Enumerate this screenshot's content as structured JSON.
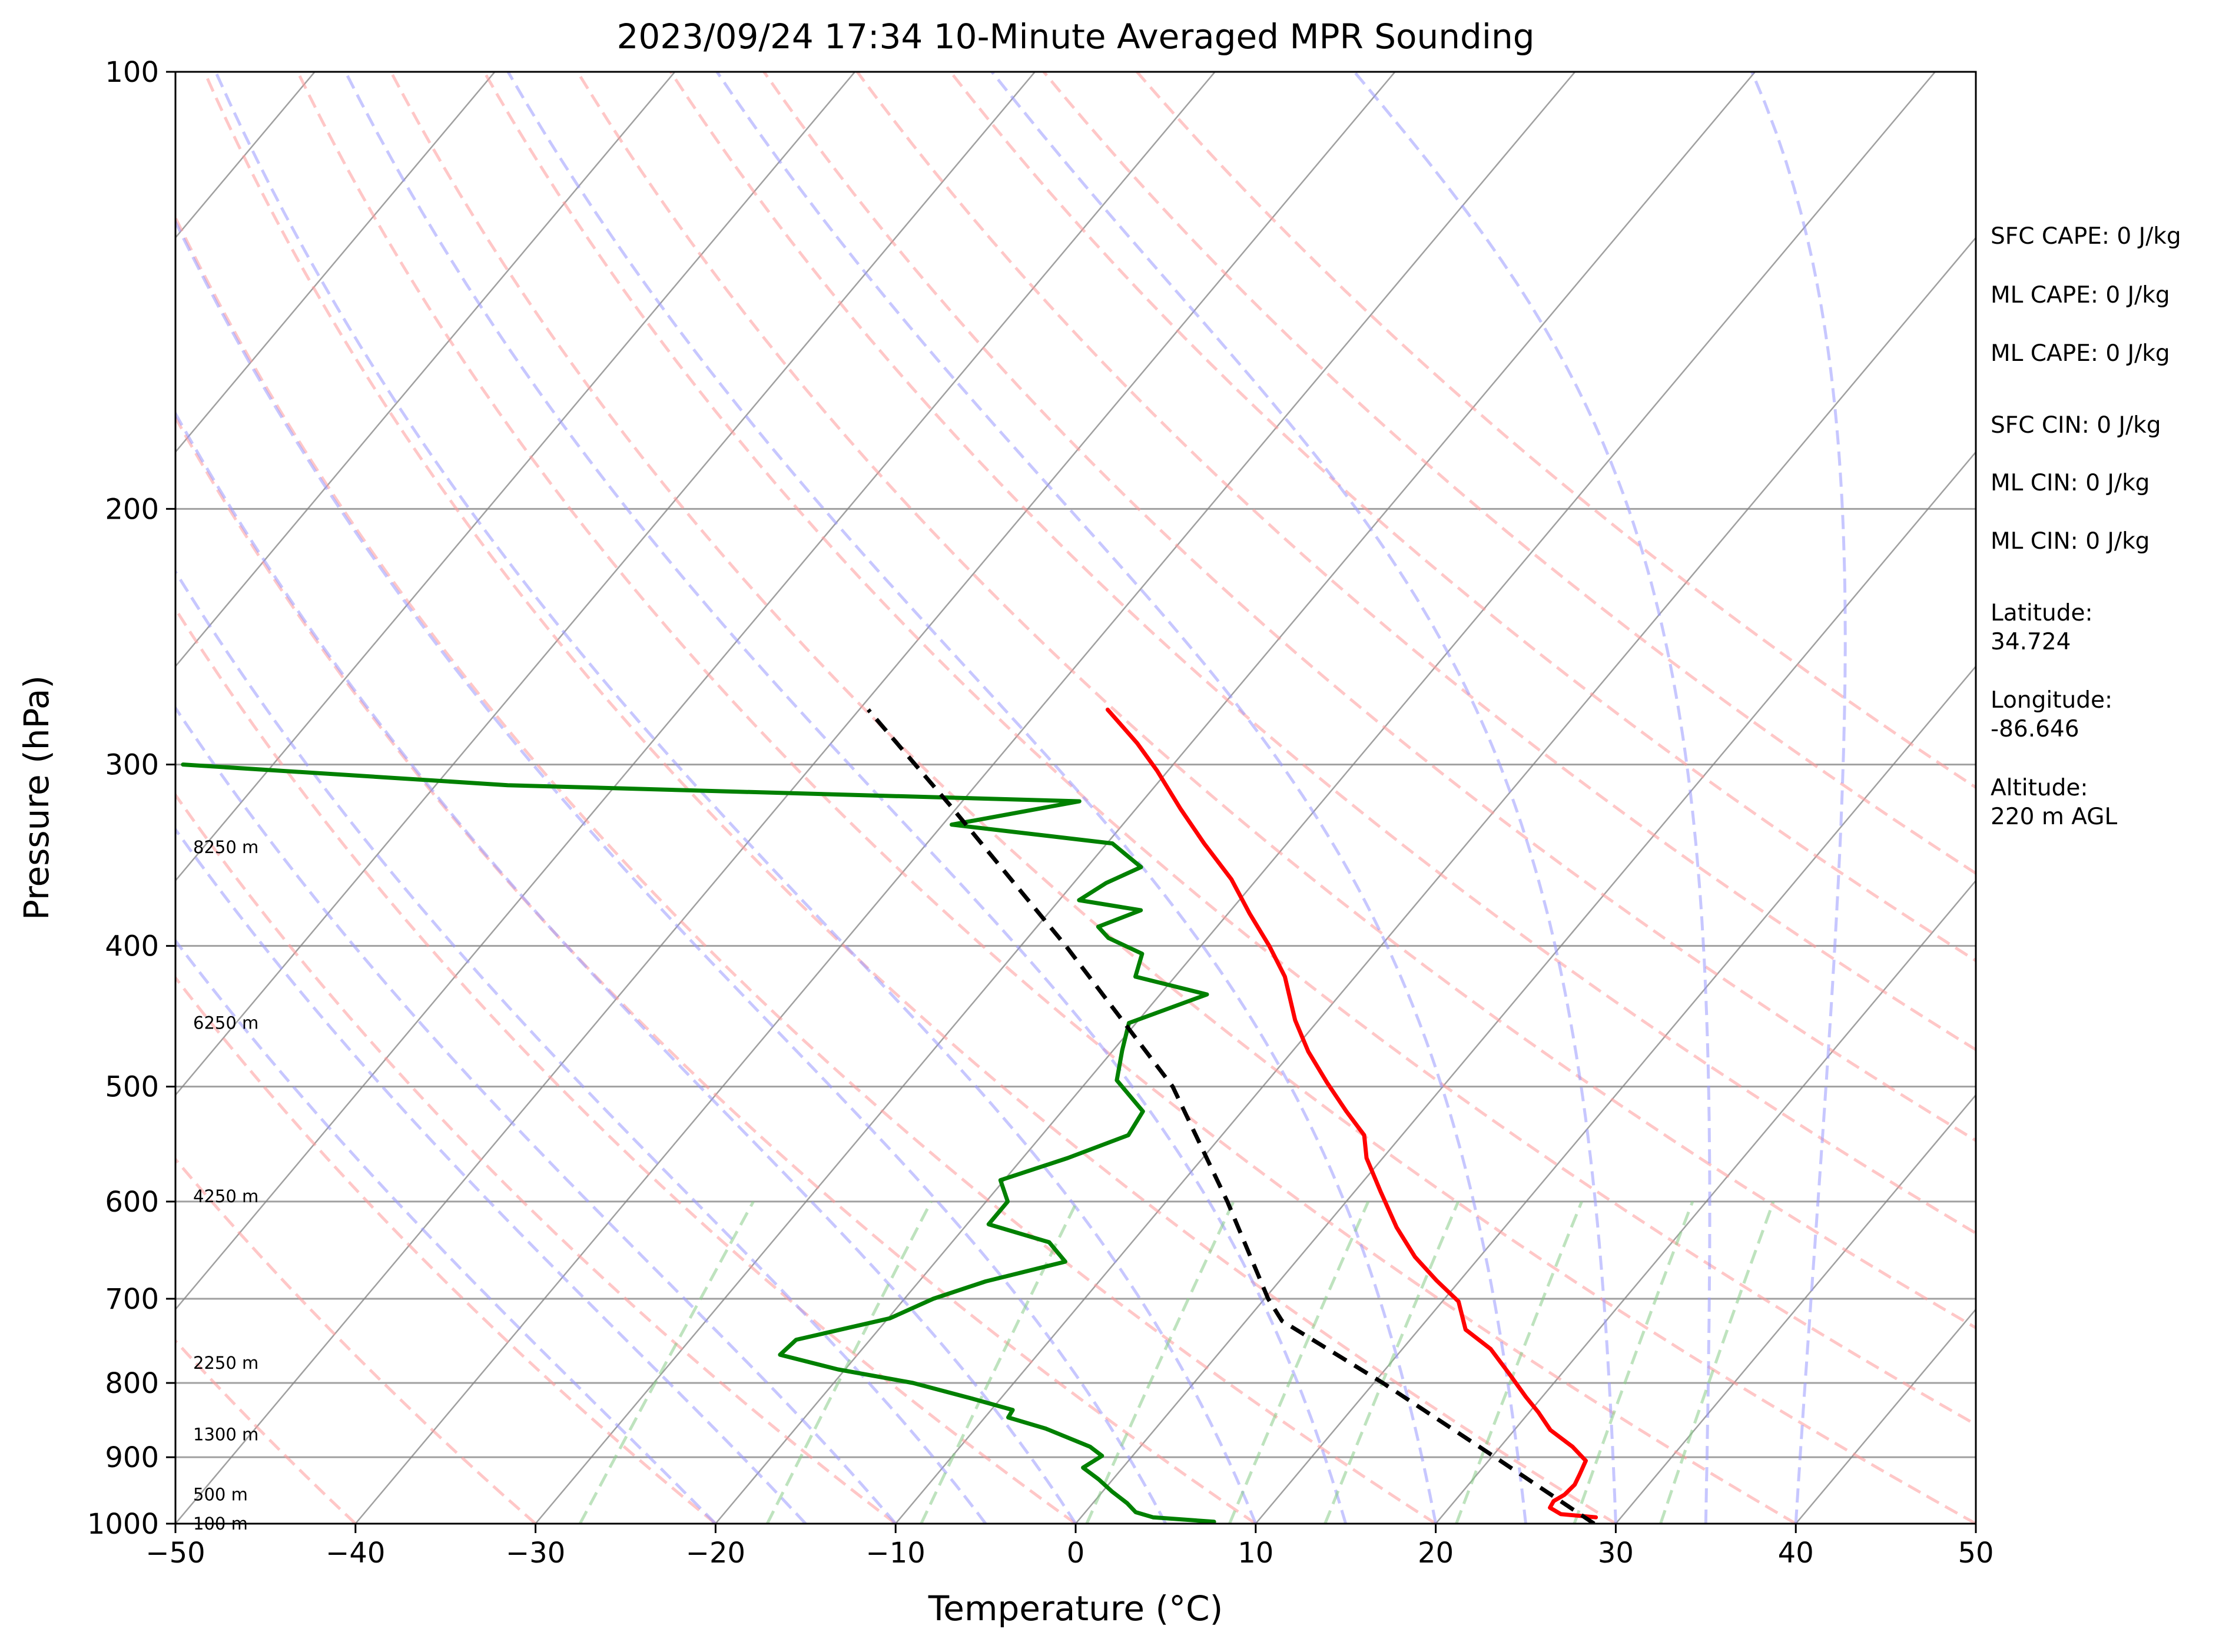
{
  "chart_data": {
    "type": "line",
    "title": "2023/09/24 17:34 10-Minute Averaged MPR Sounding",
    "xlabel": "Temperature (°C)",
    "ylabel": "Pressure (hPa)",
    "xlim": [
      -50,
      50
    ],
    "ylim": [
      1000,
      100
    ],
    "y_scale": "log",
    "skew": "skew-T log-P",
    "x_ticks": [
      "−50",
      "−40",
      "−30",
      "−20",
      "−10",
      "0",
      "10",
      "20",
      "30",
      "40",
      "50"
    ],
    "y_ticks": [
      "100",
      "200",
      "300",
      "400",
      "500",
      "600",
      "700",
      "800",
      "900",
      "1000"
    ],
    "grid": true,
    "series": [
      {
        "role": "temperature",
        "color": "#ff0000",
        "points": [
          {
            "p": 990,
            "t": 28.6
          },
          {
            "p": 985,
            "t": 26.5
          },
          {
            "p": 975,
            "t": 25.6
          },
          {
            "p": 965,
            "t": 25.5
          },
          {
            "p": 955,
            "t": 25.8
          },
          {
            "p": 940,
            "t": 25.9
          },
          {
            "p": 925,
            "t": 25.7
          },
          {
            "p": 905,
            "t": 25.4
          },
          {
            "p": 885,
            "t": 24.0
          },
          {
            "p": 862,
            "t": 22.0
          },
          {
            "p": 838,
            "t": 20.5
          },
          {
            "p": 818,
            "t": 19.1
          },
          {
            "p": 790,
            "t": 17.2
          },
          {
            "p": 758,
            "t": 14.9
          },
          {
            "p": 735,
            "t": 12.6
          },
          {
            "p": 703,
            "t": 10.9
          },
          {
            "p": 680,
            "t": 8.7
          },
          {
            "p": 655,
            "t": 6.4
          },
          {
            "p": 625,
            "t": 4.0
          },
          {
            "p": 590,
            "t": 1.4
          },
          {
            "p": 560,
            "t": -0.9
          },
          {
            "p": 540,
            "t": -2.1
          },
          {
            "p": 520,
            "t": -4.2
          },
          {
            "p": 497,
            "t": -6.6
          },
          {
            "p": 473,
            "t": -9.1
          },
          {
            "p": 450,
            "t": -11.3
          },
          {
            "p": 420,
            "t": -13.9
          },
          {
            "p": 400,
            "t": -16.2
          },
          {
            "p": 380,
            "t": -18.8
          },
          {
            "p": 360,
            "t": -21.4
          },
          {
            "p": 340,
            "t": -24.6
          },
          {
            "p": 322,
            "t": -27.5
          },
          {
            "p": 303,
            "t": -30.6
          },
          {
            "p": 290,
            "t": -33.0
          },
          {
            "p": 275,
            "t": -36.2
          }
        ]
      },
      {
        "role": "dewpoint",
        "color": "#008000",
        "points": [
          {
            "p": 997,
            "t": 7.6
          },
          {
            "p": 990,
            "t": 4.0
          },
          {
            "p": 982,
            "t": 2.8
          },
          {
            "p": 968,
            "t": 1.9
          },
          {
            "p": 950,
            "t": 0.5
          },
          {
            "p": 932,
            "t": -0.8
          },
          {
            "p": 915,
            "t": -2.2
          },
          {
            "p": 898,
            "t": -1.7
          },
          {
            "p": 885,
            "t": -2.8
          },
          {
            "p": 860,
            "t": -6.1
          },
          {
            "p": 845,
            "t": -8.7
          },
          {
            "p": 835,
            "t": -8.8
          },
          {
            "p": 820,
            "t": -11.6
          },
          {
            "p": 800,
            "t": -15.6
          },
          {
            "p": 783,
            "t": -20.4
          },
          {
            "p": 765,
            "t": -24.3
          },
          {
            "p": 747,
            "t": -24.1
          },
          {
            "p": 722,
            "t": -19.9
          },
          {
            "p": 700,
            "t": -18.4
          },
          {
            "p": 681,
            "t": -16.3
          },
          {
            "p": 660,
            "t": -12.8
          },
          {
            "p": 640,
            "t": -14.6
          },
          {
            "p": 622,
            "t": -18.8
          },
          {
            "p": 600,
            "t": -18.8
          },
          {
            "p": 580,
            "t": -20.2
          },
          {
            "p": 560,
            "t": -17.5
          },
          {
            "p": 540,
            "t": -15.2
          },
          {
            "p": 520,
            "t": -15.5
          },
          {
            "p": 495,
            "t": -18.4
          },
          {
            "p": 472,
            "t": -19.5
          },
          {
            "p": 452,
            "t": -20.4
          },
          {
            "p": 432,
            "t": -17.4
          },
          {
            "p": 420,
            "t": -22.2
          },
          {
            "p": 405,
            "t": -22.9
          },
          {
            "p": 395,
            "t": -25.5
          },
          {
            "p": 388,
            "t": -26.6
          },
          {
            "p": 378,
            "t": -25.0
          },
          {
            "p": 372,
            "t": -28.9
          },
          {
            "p": 362,
            "t": -28.2
          },
          {
            "p": 353,
            "t": -27.0
          },
          {
            "p": 340,
            "t": -29.7
          },
          {
            "p": 330,
            "t": -39.5
          },
          {
            "p": 318,
            "t": -33.5
          },
          {
            "p": 310,
            "t": -66.0
          },
          {
            "p": 300,
            "t": -85.0
          }
        ]
      },
      {
        "role": "parcel",
        "color": "#000000",
        "style": "dashed",
        "points": [
          {
            "p": 1000,
            "t": 28.8
          },
          {
            "p": 900,
            "t": 20.2
          },
          {
            "p": 800,
            "t": 10.5
          },
          {
            "p": 725,
            "t": 2.0
          },
          {
            "p": 700,
            "t": 0.2
          },
          {
            "p": 600,
            "t": -6.6
          },
          {
            "p": 500,
            "t": -15.0
          },
          {
            "p": 400,
            "t": -27.5
          },
          {
            "p": 320,
            "t": -40.5
          },
          {
            "p": 275,
            "t": -49.5
          }
        ]
      }
    ],
    "reference_lines": {
      "isotherms_c": [
        -140,
        -130,
        -120,
        -110,
        -100,
        -90,
        -80,
        -70,
        -60,
        -50,
        -40,
        -30,
        -20,
        -10,
        0,
        10,
        20,
        30,
        40,
        50
      ],
      "dry_adiabats_c": [
        -50,
        -40,
        -30,
        -20,
        -10,
        0,
        10,
        20,
        30,
        40,
        50,
        60,
        70,
        80,
        90,
        100,
        110,
        120,
        130
      ],
      "moist_adiabats_c": [
        -20,
        -15,
        -10,
        -5,
        0,
        5,
        10,
        15,
        20,
        25,
        30,
        35,
        40
      ],
      "mixing_ratios_gkg": [
        0.4,
        1,
        2,
        4,
        7,
        10,
        16,
        24,
        32
      ],
      "colors": {
        "dry_adiabat": "#ff9999",
        "moist_adiabat": "#9999ff",
        "mixing_ratio": "#88cc88",
        "isotherm": "#808080",
        "grid": "#a0a0a0"
      }
    },
    "height_labels": [
      {
        "p": 1000,
        "label": "100 m"
      },
      {
        "p": 955,
        "label": "500 m"
      },
      {
        "p": 868,
        "label": "1300 m"
      },
      {
        "p": 775,
        "label": "2250 m"
      },
      {
        "p": 595,
        "label": "4250 m"
      },
      {
        "p": 452,
        "label": "6250 m"
      },
      {
        "p": 342,
        "label": "8250 m"
      }
    ]
  },
  "side_panel": {
    "sfc_cape": "SFC CAPE: 0 J/kg",
    "ml_cape_1": "ML CAPE: 0 J/kg",
    "ml_cape_2": "ML CAPE: 0 J/kg",
    "sfc_cin": "SFC CIN: 0 J/kg",
    "ml_cin_1": "ML CIN: 0 J/kg",
    "ml_cin_2": "ML CIN: 0 J/kg",
    "latitude_label": "Latitude:",
    "latitude_value": "34.724",
    "longitude_label": "Longitude:",
    "longitude_value": "-86.646",
    "altitude_label": "Altitude:",
    "altitude_value": "220 m AGL"
  }
}
